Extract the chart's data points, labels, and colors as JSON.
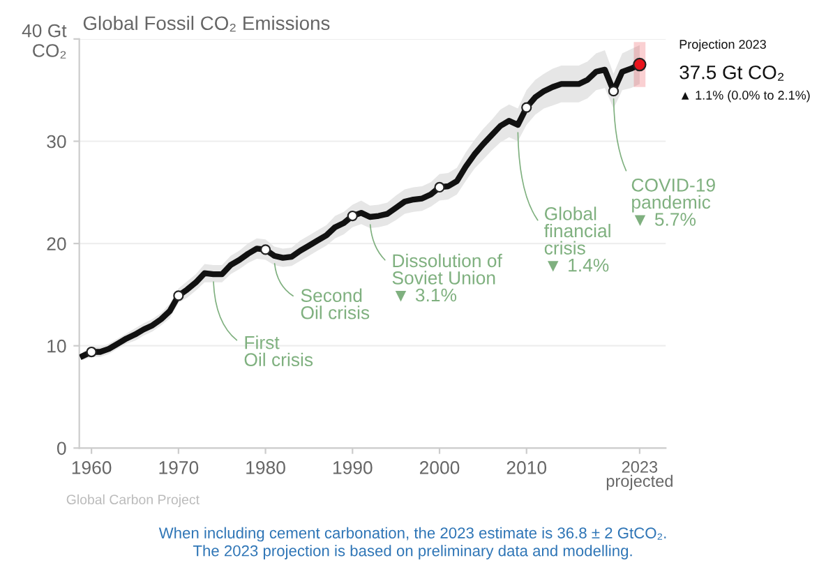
{
  "chart_data": {
    "type": "line",
    "title": "Global Fossil CO₂ Emissions",
    "xlim": [
      1958.6,
      2026
    ],
    "ylim": [
      0,
      40
    ],
    "xticks": [
      1960,
      1970,
      1980,
      1990,
      2000,
      2010,
      {
        "value": 2023,
        "label": "2023\nprojected"
      }
    ],
    "yticks": [
      0,
      10,
      20,
      30,
      {
        "value": 40,
        "label": "40 Gt\nCO₂"
      }
    ],
    "grid": "y",
    "legend": false,
    "series": [
      {
        "color": "#111111",
        "marker": "none",
        "line_style": "solid",
        "x": [
          1959,
          1960,
          1961,
          1962,
          1963,
          1964,
          1965,
          1966,
          1967,
          1968,
          1969,
          1970,
          1971,
          1972,
          1973,
          1974,
          1975,
          1976,
          1977,
          1978,
          1979,
          1980,
          1981,
          1982,
          1983,
          1984,
          1985,
          1986,
          1987,
          1988,
          1989,
          1990,
          1991,
          1992,
          1993,
          1994,
          1995,
          1996,
          1997,
          1998,
          1999,
          2000,
          2001,
          2002,
          2003,
          2004,
          2005,
          2006,
          2007,
          2008,
          2009,
          2010,
          2011,
          2012,
          2013,
          2014,
          2015,
          2016,
          2017,
          2018,
          2019,
          2020,
          2021,
          2022,
          2023
        ],
        "values": [
          9.0,
          9.4,
          9.4,
          9.7,
          10.2,
          10.7,
          11.1,
          11.6,
          12.0,
          12.6,
          13.4,
          14.9,
          15.5,
          16.2,
          17.1,
          17.0,
          17.0,
          17.9,
          18.4,
          19.0,
          19.5,
          19.4,
          18.8,
          18.6,
          18.7,
          19.3,
          19.8,
          20.3,
          20.8,
          21.6,
          22.0,
          22.7,
          23.0,
          22.6,
          22.7,
          22.9,
          23.5,
          24.1,
          24.3,
          24.4,
          24.8,
          25.5,
          25.6,
          26.1,
          27.5,
          28.7,
          29.7,
          30.6,
          31.5,
          32.0,
          31.6,
          33.3,
          34.3,
          34.9,
          35.3,
          35.6,
          35.6,
          35.6,
          36.0,
          36.8,
          37.0,
          34.9,
          36.8,
          37.1,
          37.5
        ],
        "lower": [
          8.6,
          8.9,
          8.9,
          9.2,
          9.7,
          10.2,
          10.5,
          11.0,
          11.4,
          12.0,
          12.7,
          14.2,
          14.7,
          15.4,
          16.2,
          16.2,
          16.2,
          17.0,
          17.5,
          18.1,
          18.5,
          18.4,
          17.9,
          17.7,
          17.8,
          18.3,
          18.8,
          19.3,
          19.8,
          20.5,
          20.9,
          21.6,
          21.9,
          21.5,
          21.6,
          21.8,
          22.3,
          22.9,
          23.1,
          23.2,
          23.6,
          24.2,
          24.3,
          24.8,
          26.1,
          27.3,
          28.2,
          29.1,
          29.9,
          30.4,
          30.0,
          31.6,
          32.6,
          33.2,
          33.5,
          33.8,
          33.8,
          33.8,
          34.2,
          35.0,
          35.2,
          33.2,
          35.0,
          35.2,
          35.6
        ],
        "upper": [
          9.4,
          9.9,
          9.9,
          10.2,
          10.7,
          11.2,
          11.7,
          12.2,
          12.6,
          13.2,
          14.1,
          15.6,
          16.3,
          17.0,
          18.0,
          17.9,
          17.9,
          18.8,
          19.3,
          20.0,
          20.5,
          20.4,
          19.7,
          19.5,
          19.6,
          20.3,
          20.8,
          21.3,
          21.8,
          22.7,
          23.1,
          23.8,
          24.2,
          23.7,
          23.8,
          24.0,
          24.7,
          25.3,
          25.5,
          25.6,
          26.0,
          26.8,
          26.9,
          27.4,
          28.9,
          30.1,
          31.2,
          32.1,
          33.1,
          33.6,
          33.2,
          35.0,
          36.0,
          36.6,
          37.1,
          37.4,
          37.4,
          37.4,
          37.8,
          38.6,
          38.9,
          36.6,
          38.6,
          39.0,
          39.4
        ]
      },
      {
        "type": "scatter",
        "color": "#ffffff",
        "marker": "circle",
        "x": [
          1960,
          1970,
          1980,
          1990,
          2000,
          2010,
          2020
        ],
        "values": [
          9.4,
          14.9,
          19.4,
          22.7,
          25.5,
          33.3,
          34.9
        ]
      },
      {
        "type": "scatter",
        "color": "#e8141c",
        "marker": "circle",
        "x": [
          2023
        ],
        "values": [
          37.5
        ],
        "errors": [
          [
            35.3,
            39.7
          ]
        ]
      }
    ],
    "annotations": [
      {
        "text": "First\nOil crisis",
        "x": 1974,
        "y": 17.0
      },
      {
        "text": "Second\nOil crisis",
        "x": 1981,
        "y": 18.8
      },
      {
        "text": "Dissolution of\nSoviet Union\n▼ 3.1%",
        "x": 1992,
        "y": 22.6
      },
      {
        "text": "Global\nfinancial\ncrisis\n▼ 1.4%",
        "x": 2009,
        "y": 31.6
      },
      {
        "text": "COVID-19\npandemic\n▼ 5.7%",
        "x": 2020,
        "y": 34.9
      },
      "Projection 2023",
      "37.5 Gt CO₂",
      "▲ 1.1% (0.0% to 2.1%)",
      "Global Carbon Project",
      "When including cement carbonation, the 2023 estimate is 36.8 ± 2 GtCO₂.\nThe 2023 projection is based on preliminary data and modelling."
    ]
  }
}
